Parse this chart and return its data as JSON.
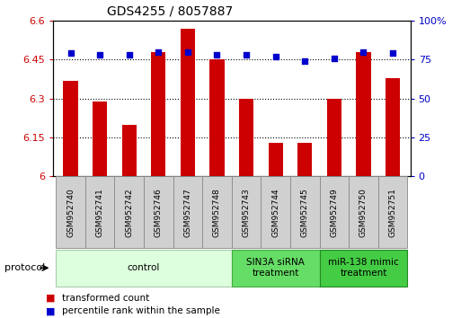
{
  "title": "GDS4255 / 8057887",
  "categories": [
    "GSM952740",
    "GSM952741",
    "GSM952742",
    "GSM952746",
    "GSM952747",
    "GSM952748",
    "GSM952743",
    "GSM952744",
    "GSM952745",
    "GSM952749",
    "GSM952750",
    "GSM952751"
  ],
  "bar_values": [
    6.37,
    6.29,
    6.2,
    6.48,
    6.57,
    6.45,
    6.3,
    6.13,
    6.13,
    6.3,
    6.48,
    6.38
  ],
  "scatter_values": [
    79,
    78,
    78,
    80,
    80,
    78,
    78,
    77,
    74,
    76,
    80,
    79
  ],
  "bar_color": "#cc0000",
  "scatter_color": "#0000cc",
  "ylim_left": [
    6.0,
    6.6
  ],
  "ylim_right": [
    0,
    100
  ],
  "yticks_left": [
    6.0,
    6.15,
    6.3,
    6.45,
    6.6
  ],
  "yticks_right": [
    0,
    25,
    50,
    75,
    100
  ],
  "ytick_labels_left": [
    "6",
    "6.15",
    "6.3",
    "6.45",
    "6.6"
  ],
  "ytick_labels_right": [
    "0",
    "25",
    "50",
    "75",
    "100%"
  ],
  "hgrid_values": [
    6.15,
    6.3,
    6.45
  ],
  "groups": [
    {
      "label": "control",
      "start": 0,
      "end": 6,
      "color": "#ddffdd",
      "edge_color": "#aaccaa"
    },
    {
      "label": "SIN3A siRNA\ntreatment",
      "start": 6,
      "end": 9,
      "color": "#66dd66",
      "edge_color": "#44aa44"
    },
    {
      "label": "miR-138 mimic\ntreatment",
      "start": 9,
      "end": 12,
      "color": "#44cc44",
      "edge_color": "#228822"
    }
  ],
  "legend_items": [
    {
      "label": "transformed count",
      "color": "#cc0000"
    },
    {
      "label": "percentile rank within the sample",
      "color": "#0000cc"
    }
  ],
  "protocol_label": "protocol",
  "bar_width": 0.5,
  "figure_bgcolor": "#ffffff",
  "axes_bgcolor": "#ffffff",
  "sample_box_color": "#d0d0d0",
  "sample_box_edge": "#888888"
}
